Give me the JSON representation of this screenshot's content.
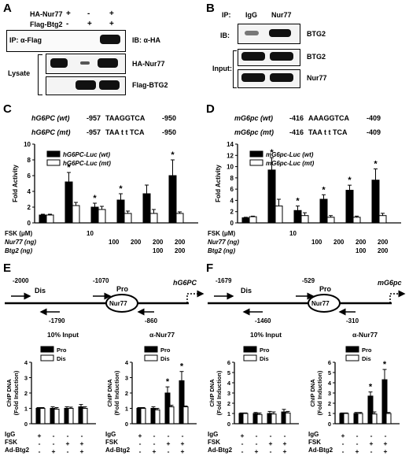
{
  "panels": {
    "A": "A",
    "B": "B",
    "C": "C",
    "D": "D",
    "E": "E",
    "F": "F"
  },
  "panel_a": {
    "rows": [
      {
        "label": "HA-Nur77",
        "marks": [
          "+",
          "-",
          "+"
        ]
      },
      {
        "label": "Flag-Btg2",
        "marks": [
          "-",
          "+",
          "+"
        ]
      }
    ],
    "ip_label": "IP: α-Flag",
    "ib_label": "IB: α-HA",
    "lysate_label": "Lysate",
    "blot_labels": [
      "HA-Nur77",
      "Flag-BTG2"
    ]
  },
  "panel_b": {
    "ip_label": "IP:",
    "lanes": [
      "IgG",
      "Nur77"
    ],
    "ib_label": "IB:",
    "input_label": "Input:",
    "blot_labels": [
      "BTG2",
      "BTG2",
      "Nur77"
    ]
  },
  "seq_c": [
    {
      "gene": "hG6PC (wt)",
      "pos1": "-957",
      "seq": "TAAGGTCA",
      "pos2": "-950"
    },
    {
      "gene": "hG6PC (mt)",
      "pos1": "-957",
      "seq": "TAA t t TCA",
      "pos2": "-950"
    }
  ],
  "seq_d": [
    {
      "gene": "mG6pc (wt)",
      "pos1": "-416",
      "seq": "AAAGGTCA",
      "pos2": "-409"
    },
    {
      "gene": "mG6pc (mt)",
      "pos1": "-416",
      "seq": "TAA t t TCA",
      "pos2": "-409"
    }
  ],
  "treat_cd": {
    "labels": [
      "FSK (μM)",
      "Nur77 (ng)",
      "Btg2 (ng)"
    ],
    "fsk": [
      "10"
    ],
    "nur77": [
      "100",
      "200",
      "200",
      "200"
    ],
    "btg2": [
      "100",
      "200"
    ]
  },
  "chart_data": [
    {
      "id": "C",
      "type": "bar",
      "ylabel": "Fold Activity",
      "ylim": [
        0,
        10
      ],
      "yticks": [
        "0",
        "2",
        "4",
        "6",
        "8",
        "10"
      ],
      "series": [
        {
          "name": "hG6PC-Luc (wt)",
          "values": [
            1,
            5.2,
            2,
            2.9,
            3.7,
            6
          ]
        },
        {
          "name": "hG6PC-Luc (mt)",
          "values": [
            1,
            2.2,
            1.7,
            1.2,
            1.2,
            1.2
          ]
        }
      ],
      "errors": [
        [
          0.1,
          1.2,
          0.5,
          0.8,
          1.1,
          2
        ],
        [
          0.1,
          0.4,
          0.4,
          0.3,
          0.5,
          0.2
        ]
      ],
      "stars": [
        "",
        "*",
        "*",
        "*",
        "",
        "*"
      ]
    },
    {
      "id": "D",
      "type": "bar",
      "ylabel": "Fold Activity",
      "ylim": [
        0,
        14
      ],
      "yticks": [
        "0",
        "2",
        "4",
        "6",
        "8",
        "10",
        "12",
        "14"
      ],
      "series": [
        {
          "name": "mG6pc-Luc (wt)",
          "values": [
            0.9,
            9.4,
            2.2,
            4.2,
            5.8,
            7.6
          ]
        },
        {
          "name": "mG6pc-Luc (mt)",
          "values": [
            1.1,
            3,
            1.3,
            1,
            1,
            1.3
          ]
        }
      ],
      "errors": [
        [
          0.1,
          2.2,
          0.8,
          0.8,
          0.9,
          2
        ],
        [
          0.1,
          1.2,
          0.5,
          0.3,
          0.2,
          0.4
        ]
      ],
      "stars": [
        "",
        "*",
        "*",
        "*",
        "*",
        "*"
      ]
    },
    {
      "id": "E1",
      "type": "bar",
      "title": "10% Input",
      "ylabel": "ChIP DNA",
      "ylabel2": "(Fold Induction)",
      "ylim": [
        0,
        4
      ],
      "yticks": [
        "0",
        "1",
        "2",
        "3",
        "4"
      ],
      "series": [
        {
          "name": "Pro",
          "values": [
            1,
            1,
            1,
            1.1
          ]
        },
        {
          "name": "Dis",
          "values": [
            1,
            0.95,
            1,
            1
          ]
        }
      ],
      "errors": [
        [
          0.05,
          0.1,
          0.1,
          0.15
        ],
        [
          0.05,
          0.1,
          0.08,
          0.1
        ]
      ],
      "stars": [
        "",
        "",
        "",
        ""
      ]
    },
    {
      "id": "E2",
      "type": "bar",
      "title": "α-Nur77",
      "ylabel": "ChIP DNA",
      "ylabel2": "(Fold Induction)",
      "ylim": [
        0,
        4
      ],
      "yticks": [
        "0",
        "1",
        "2",
        "3",
        "4"
      ],
      "series": [
        {
          "name": "Pro",
          "values": [
            1,
            1,
            2,
            2.8
          ]
        },
        {
          "name": "Dis",
          "values": [
            1,
            0.9,
            1.1,
            1.1
          ]
        }
      ],
      "errors": [
        [
          0.05,
          0.1,
          0.4,
          0.6
        ],
        [
          0.05,
          0.1,
          0.1,
          0.05
        ]
      ],
      "stars": [
        "",
        "",
        "*",
        "*"
      ]
    },
    {
      "id": "F1",
      "type": "bar",
      "title": "10% Input",
      "ylabel": "ChIP DNA",
      "ylabel2": "(Fold Induction)",
      "ylim": [
        0,
        6
      ],
      "yticks": [
        "0",
        "1",
        "2",
        "3",
        "4",
        "5",
        "6"
      ],
      "series": [
        {
          "name": "Pro",
          "values": [
            1,
            1,
            1,
            1.15
          ]
        },
        {
          "name": "Dis",
          "values": [
            1,
            0.9,
            0.95,
            1.05
          ]
        }
      ],
      "errors": [
        [
          0.05,
          0.1,
          0.2,
          0.25
        ],
        [
          0.05,
          0.15,
          0.2,
          0.15
        ]
      ],
      "stars": [
        "",
        "",
        "",
        ""
      ]
    },
    {
      "id": "F2",
      "type": "bar",
      "title": "α-Nur77",
      "ylabel": "ChIP DNA",
      "ylabel2": "(Fold Induction)",
      "ylim": [
        0,
        6
      ],
      "yticks": [
        "0",
        "1",
        "2",
        "3",
        "4",
        "5",
        "6"
      ],
      "series": [
        {
          "name": "Pro",
          "values": [
            1,
            1,
            2.7,
            4.3
          ]
        },
        {
          "name": "Dis",
          "values": [
            1,
            1,
            0.95,
            1
          ]
        }
      ],
      "errors": [
        [
          0.05,
          0.1,
          0.4,
          1
        ],
        [
          0.05,
          0.1,
          0.2,
          0.1
        ]
      ],
      "stars": [
        "",
        "",
        "*",
        "*"
      ]
    }
  ],
  "diagram_e": {
    "gene": "hG6PC",
    "dis": "Dis",
    "pro": "Pro",
    "box": "Nur77",
    "top": [
      "-2000",
      "-1070"
    ],
    "bottom": [
      "-1790",
      "-860"
    ]
  },
  "diagram_f": {
    "gene": "mG6pc",
    "dis": "Dis",
    "pro": "Pro",
    "box": "Nur77",
    "top": [
      "-1679",
      "-529"
    ],
    "bottom": [
      "-1460",
      "-310"
    ]
  },
  "treat_ef": {
    "labels": [
      "IgG",
      "FSK",
      "Ad-Btg2"
    ],
    "rows": [
      [
        "+",
        "-",
        "-",
        "-"
      ],
      [
        "-",
        "-",
        "+",
        "+"
      ],
      [
        "-",
        "+",
        "-",
        "+"
      ]
    ]
  },
  "colors": {
    "filled": "#000000",
    "open": "#ffffff",
    "blot_bg": "#f4f4f4"
  }
}
